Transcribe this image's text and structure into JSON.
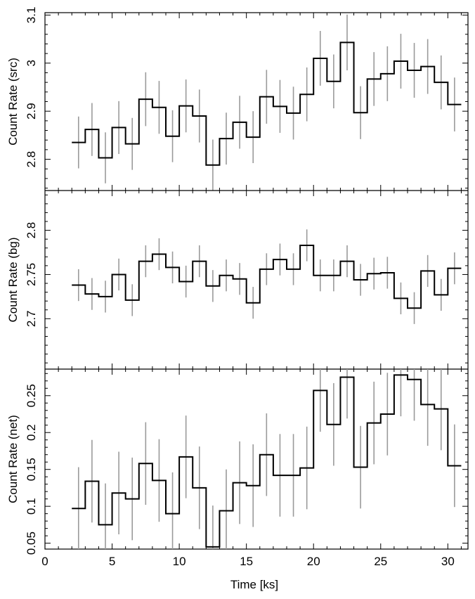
{
  "chart_data": {
    "type": "line",
    "style": "step-histogram-with-error-bars",
    "x": [
      2.5,
      3.5,
      4.5,
      5.5,
      6.5,
      7.5,
      8.5,
      9.5,
      10.5,
      11.5,
      12.5,
      13.5,
      14.5,
      15.5,
      16.5,
      17.5,
      18.5,
      19.5,
      20.5,
      21.5,
      22.5,
      23.5,
      24.5,
      25.5,
      26.5,
      27.5,
      28.5,
      29.5,
      30.5
    ],
    "x_bin_width": 1.0,
    "xlabel": "Time [ks]",
    "xlim": [
      0,
      31.5
    ],
    "x_ticks": [
      0,
      5,
      10,
      15,
      20,
      25,
      30
    ],
    "x_tick_labels": [
      "0",
      "5",
      "10",
      "15",
      "20",
      "25",
      "30"
    ],
    "panels": [
      {
        "ylabel": "Count Rate (src)",
        "ylim": [
          2.735,
          3.105
        ],
        "y_ticks": [
          2.8,
          2.9,
          3.0,
          3.1
        ],
        "y_tick_labels": [
          "2.8",
          "2.9",
          "3",
          "3.1"
        ],
        "values": [
          2.835,
          2.862,
          2.803,
          2.866,
          2.832,
          2.925,
          2.908,
          2.848,
          2.911,
          2.89,
          2.788,
          2.843,
          2.877,
          2.846,
          2.93,
          2.91,
          2.896,
          2.935,
          3.01,
          2.962,
          3.043,
          2.897,
          2.967,
          2.978,
          3.004,
          2.985,
          2.993,
          2.96,
          2.914
        ],
        "errors": [
          0.054,
          0.055,
          0.053,
          0.055,
          0.054,
          0.056,
          0.055,
          0.054,
          0.055,
          0.055,
          0.053,
          0.054,
          0.055,
          0.054,
          0.056,
          0.055,
          0.055,
          0.056,
          0.057,
          0.056,
          0.058,
          0.055,
          0.056,
          0.057,
          0.057,
          0.057,
          0.057,
          0.056,
          0.056
        ]
      },
      {
        "ylabel": "Count Rate (bg)",
        "ylim": [
          2.643,
          2.845
        ],
        "y_ticks": [
          2.7,
          2.75,
          2.8
        ],
        "y_tick_labels": [
          "2.7",
          "2.75",
          "2.8"
        ],
        "values": [
          2.738,
          2.728,
          2.725,
          2.75,
          2.721,
          2.765,
          2.773,
          2.758,
          2.742,
          2.765,
          2.737,
          2.749,
          2.745,
          2.718,
          2.756,
          2.767,
          2.756,
          2.783,
          2.749,
          2.749,
          2.765,
          2.744,
          2.751,
          2.752,
          2.723,
          2.712,
          2.754,
          2.727,
          2.757
        ],
        "errors": [
          0.018,
          0.018,
          0.018,
          0.018,
          0.018,
          0.018,
          0.018,
          0.018,
          0.018,
          0.018,
          0.018,
          0.018,
          0.018,
          0.018,
          0.018,
          0.018,
          0.018,
          0.018,
          0.018,
          0.018,
          0.018,
          0.018,
          0.018,
          0.018,
          0.018,
          0.018,
          0.018,
          0.018,
          0.018
        ]
      },
      {
        "ylabel": "Count Rate (net)",
        "ylim": [
          0.042,
          0.286
        ],
        "y_ticks": [
          0.05,
          0.1,
          0.15,
          0.2,
          0.25
        ],
        "y_tick_labels": [
          "0.05",
          "0.1",
          "0.15",
          "0.2",
          "0.25"
        ],
        "values": [
          0.097,
          0.134,
          0.075,
          0.118,
          0.11,
          0.158,
          0.135,
          0.09,
          0.167,
          0.125,
          0.045,
          0.094,
          0.132,
          0.128,
          0.17,
          0.142,
          0.142,
          0.152,
          0.257,
          0.211,
          0.275,
          0.153,
          0.213,
          0.225,
          0.278,
          0.272,
          0.238,
          0.232,
          0.155
        ]
      }
    ]
  }
}
